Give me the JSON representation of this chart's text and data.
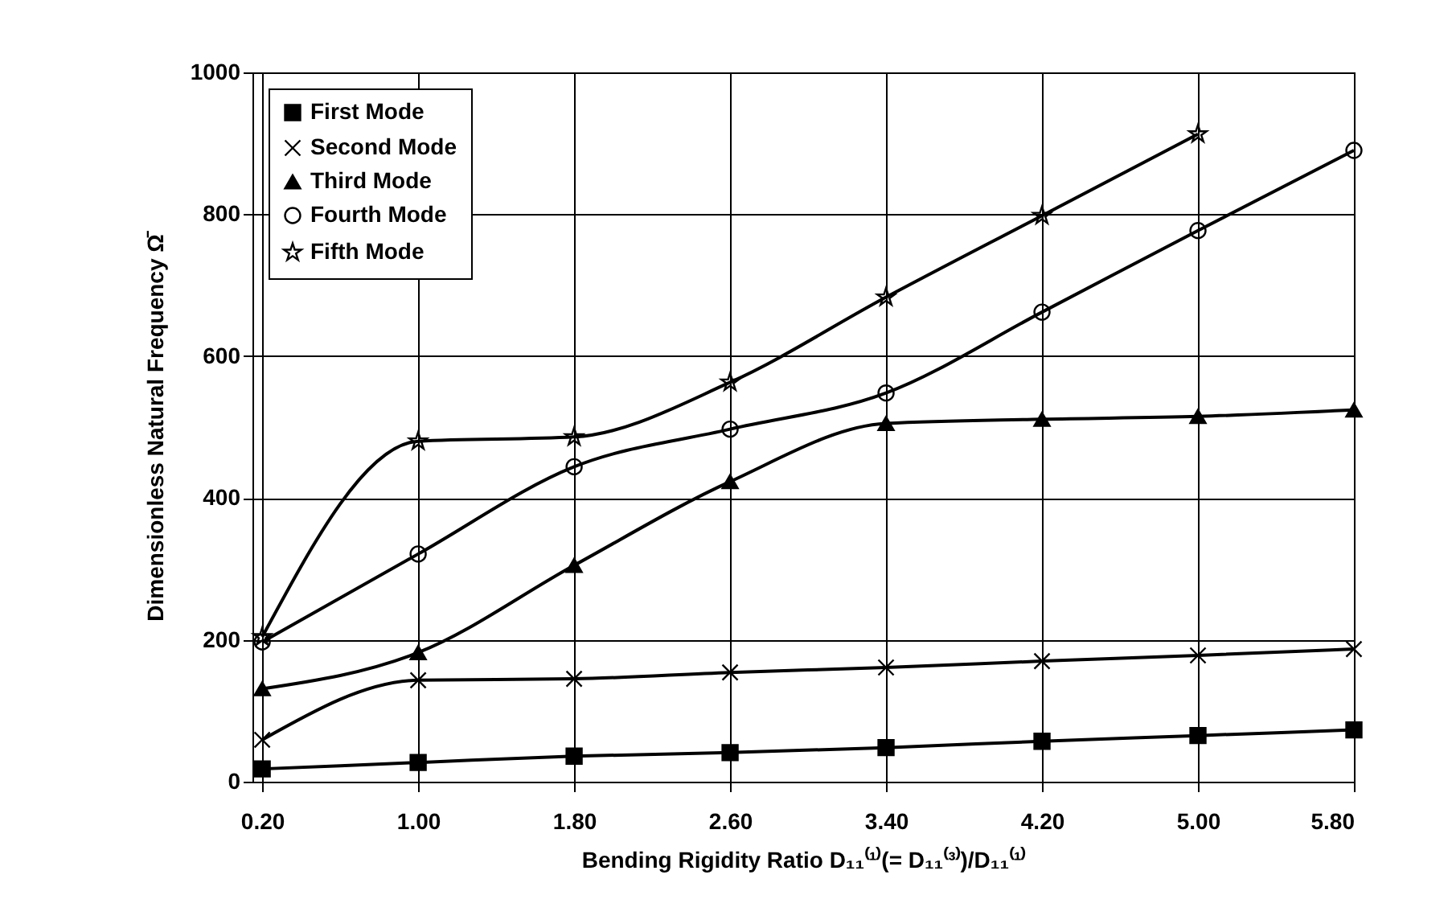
{
  "chart_data": {
    "type": "line",
    "xlabel": "Bending Rigidity Ratio D₁₁⁽¹⁾(= D₁₁⁽³⁾)/D₁₁⁽¹⁾",
    "ylabel": "Dimensionless Natural Frequency      Ω̄",
    "x": [
      0.2,
      1.0,
      1.8,
      2.6,
      3.4,
      4.2,
      5.0,
      5.8
    ],
    "xlim": [
      0.15,
      5.8
    ],
    "xticks": [
      {
        "value": 0.2,
        "label": "0.20"
      },
      {
        "value": 1.0,
        "label": "1.00"
      },
      {
        "value": 1.8,
        "label": "1.80"
      },
      {
        "value": 2.6,
        "label": "2.60"
      },
      {
        "value": 3.4,
        "label": "3.40"
      },
      {
        "value": 4.2,
        "label": "4.20"
      },
      {
        "value": 5.0,
        "label": "5.00"
      },
      {
        "value": 5.8,
        "label": "5.80"
      }
    ],
    "ylim": [
      0,
      1000
    ],
    "yticks": [
      0,
      200,
      400,
      600,
      800,
      1000
    ],
    "grid": true,
    "legend": "top left",
    "series": [
      {
        "name": "First Mode",
        "color": "#000000",
        "marker": "square",
        "values": [
          18,
          27,
          36,
          41,
          48,
          57,
          65,
          73
        ]
      },
      {
        "name": "Second Mode",
        "color": "#000000",
        "marker": "cross",
        "values": [
          59,
          143,
          145,
          154,
          161,
          170,
          178,
          187
        ]
      },
      {
        "name": "Third Mode",
        "color": "#000000",
        "marker": "triangle",
        "values": [
          131,
          182,
          305,
          423,
          505,
          511,
          515,
          524
        ]
      },
      {
        "name": "Fourth Mode",
        "color": "#000000",
        "marker": "circle",
        "values": [
          197,
          321,
          444,
          497,
          548,
          662,
          777,
          890
        ]
      },
      {
        "name": "Fifth Mode",
        "color": "#000000",
        "marker": "star",
        "values": [
          204,
          480,
          486,
          563,
          683,
          798,
          913,
          null
        ]
      }
    ]
  }
}
